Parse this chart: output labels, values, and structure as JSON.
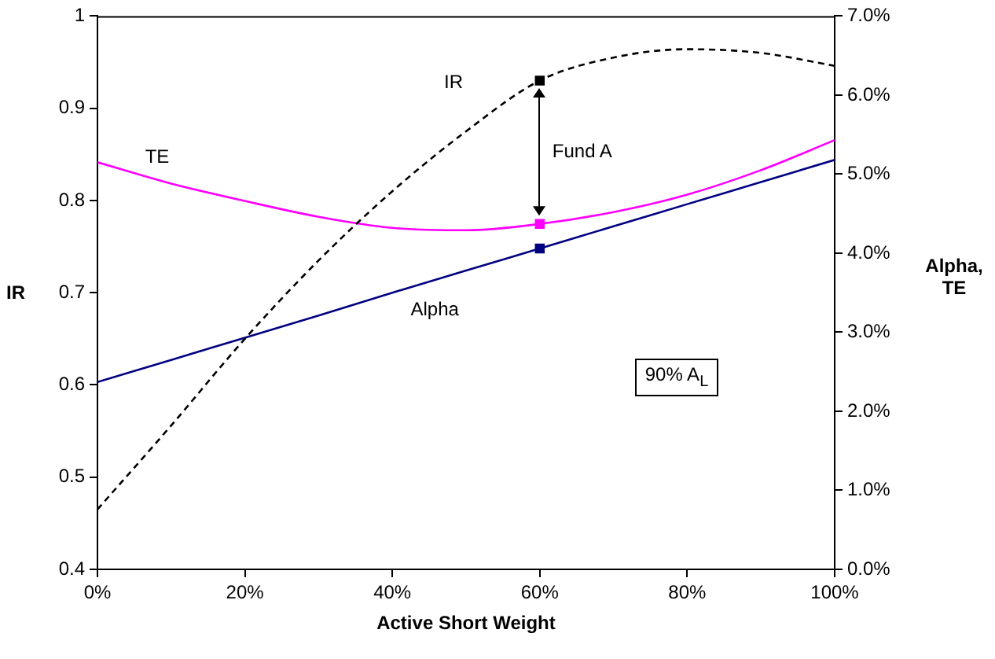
{
  "chart_data": {
    "type": "line",
    "xlabel": "Active Short Weight",
    "ylabel": "IR",
    "y2label": "Alpha, TE",
    "x": [
      0,
      10,
      20,
      30,
      40,
      50,
      60,
      70,
      80,
      90,
      100
    ],
    "xlim": [
      0,
      100
    ],
    "xticks": [
      {
        "value": 0,
        "label": "0%"
      },
      {
        "value": 20,
        "label": "20%"
      },
      {
        "value": 40,
        "label": "40%"
      },
      {
        "value": 60,
        "label": "60%"
      },
      {
        "value": 80,
        "label": "80%"
      },
      {
        "value": 100,
        "label": "100%"
      }
    ],
    "ylim": [
      0.4,
      1
    ],
    "yticks": [
      0.4,
      0.5,
      0.6,
      0.7,
      0.8,
      0.9,
      1
    ],
    "y2lim": [
      0,
      7
    ],
    "y2ticks": [
      {
        "value": 0,
        "label": "0.0%"
      },
      {
        "value": 1,
        "label": "1.0%"
      },
      {
        "value": 2,
        "label": "2.0%"
      },
      {
        "value": 3,
        "label": "3.0%"
      },
      {
        "value": 4,
        "label": "4.0%"
      },
      {
        "value": 5,
        "label": "5.0%"
      },
      {
        "value": 6,
        "label": "6.0%"
      },
      {
        "value": 7,
        "label": "7.0%"
      }
    ],
    "series": [
      {
        "name": "IR",
        "color": "#000000",
        "line_style": "dashed",
        "marker": "none",
        "values": [
          0.465,
          0.556,
          0.65,
          0.735,
          0.81,
          0.875,
          0.93,
          0.955,
          0.964,
          0.96,
          0.946
        ]
      },
      {
        "name": "TE",
        "color": "#ff00ff",
        "axis": "y2",
        "marker": "none",
        "values": [
          5.15,
          4.88,
          4.66,
          4.46,
          4.32,
          4.29,
          4.37,
          4.52,
          4.74,
          5.05,
          5.43
        ]
      },
      {
        "name": "Alpha",
        "color": "#000080",
        "axis": "y2",
        "marker": "none",
        "values": [
          2.37,
          2.65,
          2.93,
          3.21,
          3.5,
          3.78,
          4.06,
          4.34,
          4.62,
          4.9,
          5.18
        ]
      },
      {
        "type": "scatter",
        "color": "#000000",
        "marker": "square",
        "values": [
          null,
          null,
          null,
          null,
          null,
          null,
          0.93,
          null,
          null,
          null,
          null
        ]
      },
      {
        "type": "scatter",
        "color": "#ff00ff",
        "marker": "square",
        "axis": "y2",
        "values": [
          null,
          null,
          null,
          null,
          null,
          null,
          4.37,
          null,
          null,
          null,
          null
        ]
      },
      {
        "type": "scatter",
        "color": "#000080",
        "marker": "square",
        "axis": "y2",
        "values": [
          null,
          null,
          null,
          null,
          null,
          null,
          4.06,
          null,
          null,
          null,
          null
        ]
      }
    ],
    "annotations": [
      "Fund A",
      "90% A$_{L}$"
    ],
    "grid": false,
    "legend": false
  }
}
